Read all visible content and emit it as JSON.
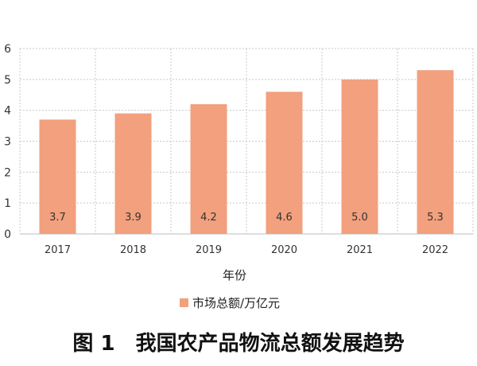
{
  "chart_data": {
    "type": "bar",
    "categories": [
      "2017",
      "2018",
      "2019",
      "2020",
      "2021",
      "2022"
    ],
    "values": [
      3.7,
      3.9,
      4.2,
      4.6,
      5.0,
      5.3
    ],
    "value_labels": [
      "3.7",
      "3.9",
      "4.2",
      "4.6",
      "5.0",
      "5.3"
    ],
    "series": [
      {
        "name": "市场总额/万亿元",
        "values": [
          3.7,
          3.9,
          4.2,
          4.6,
          5.0,
          5.3
        ]
      }
    ],
    "ylim": [
      0,
      6
    ],
    "yticks": [
      0,
      1,
      2,
      3,
      4,
      5,
      6
    ],
    "xlabel": "年份",
    "ylabel": "",
    "grid": true,
    "legend_position": "bottom",
    "bar_color": "#f2a07d"
  },
  "figure": {
    "caption": "图 1　我国农产品物流总额发展趋势"
  }
}
